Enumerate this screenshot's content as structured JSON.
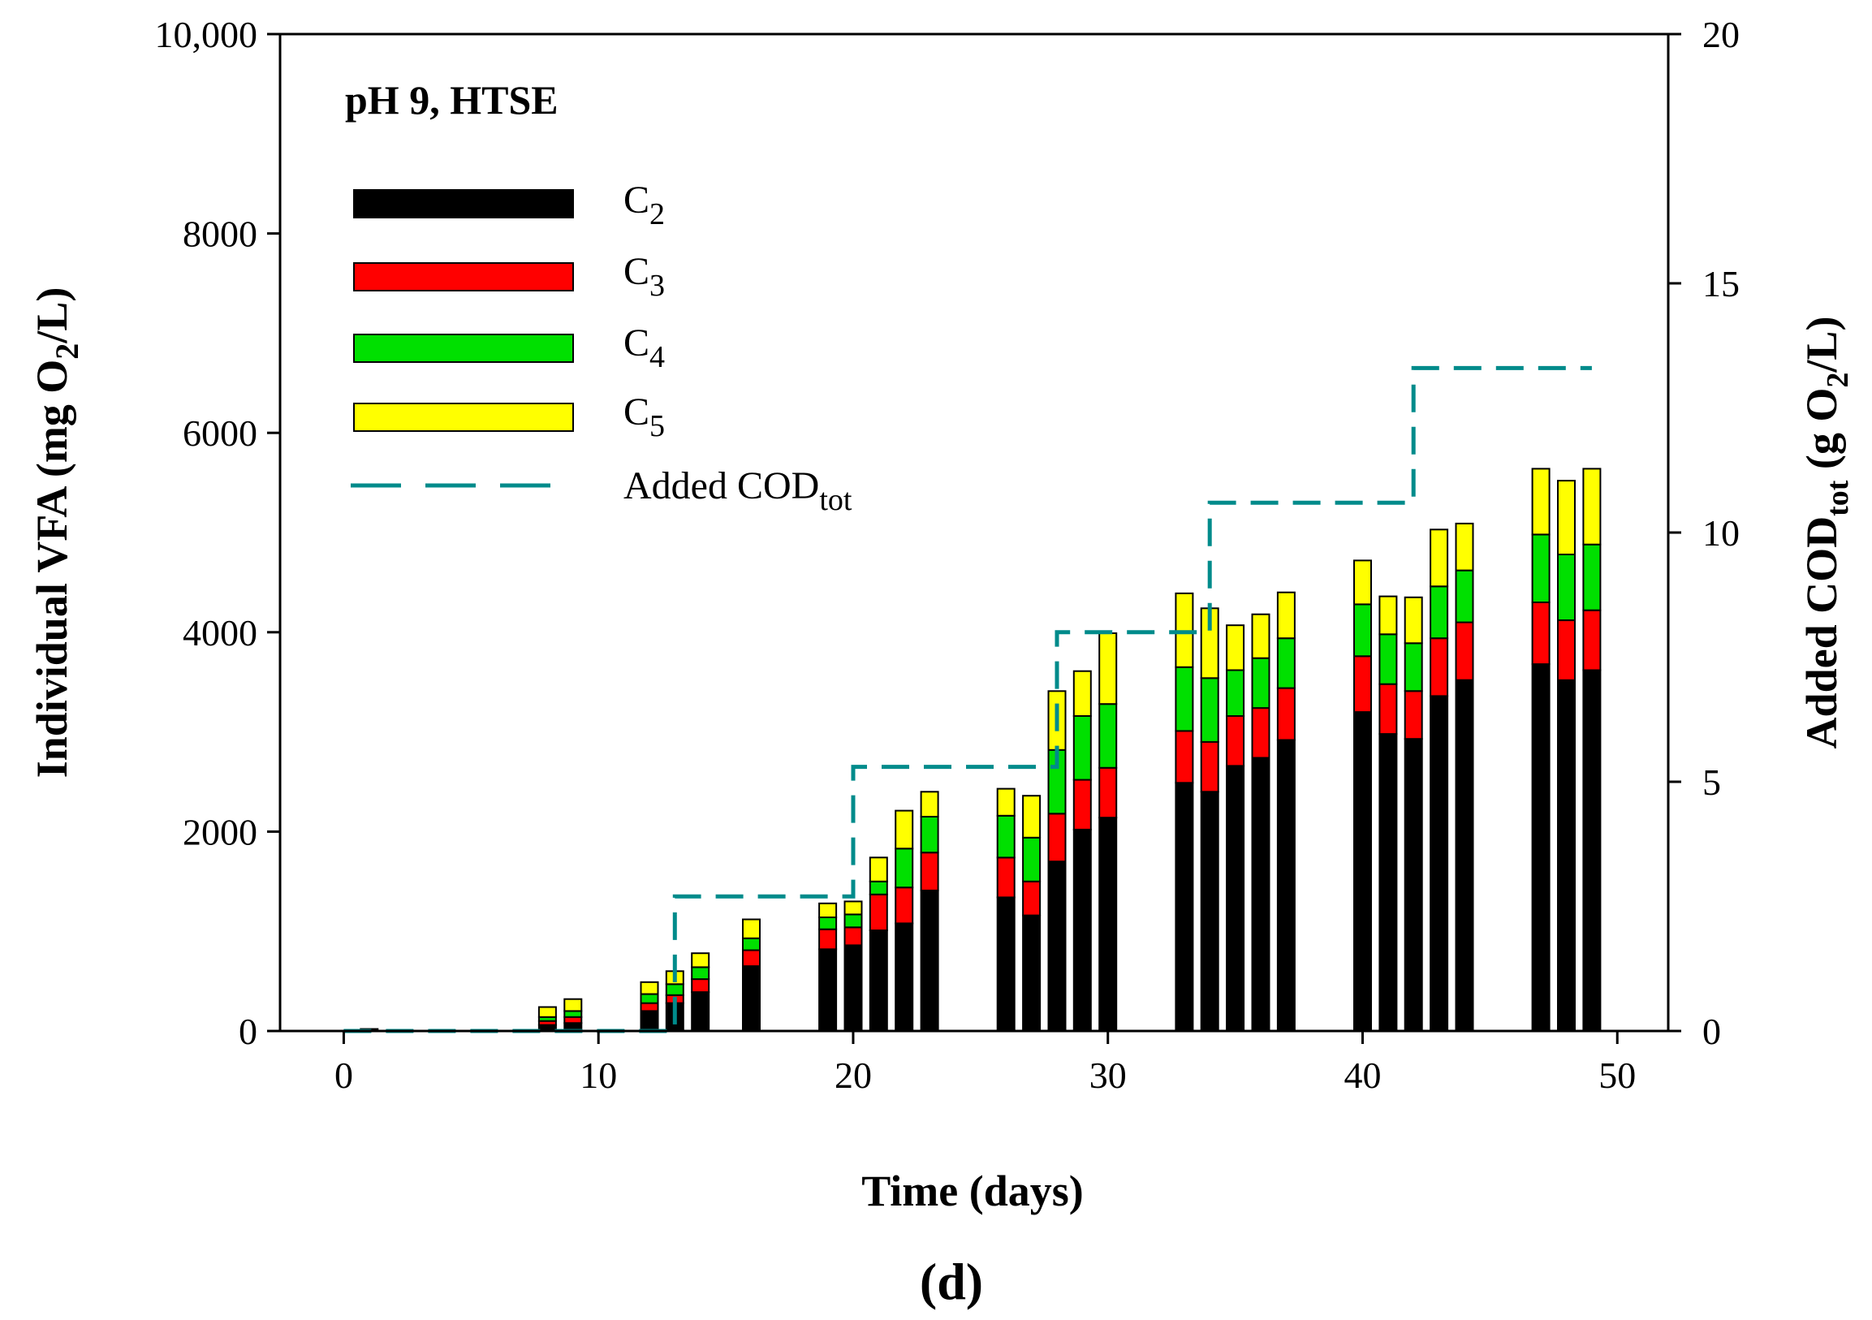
{
  "chart_data": {
    "type": "bar",
    "stacked": true,
    "title": "pH 9, HTSE",
    "panel_label": "(d)",
    "xlabel": "Time (days)",
    "ylabel": {
      "main": "Individual VFA (mg O",
      "sub": "2",
      "tail": "/L)"
    },
    "y2label": {
      "main": "Added COD",
      "sub": "tot",
      "tail": " (g O",
      "sub2": "2",
      "tail2": "/L)"
    },
    "xlim": [
      -2.5,
      52
    ],
    "ylim": [
      0,
      10000
    ],
    "y2lim": [
      0,
      20
    ],
    "x_ticks": [
      0,
      10,
      20,
      30,
      40,
      50
    ],
    "x_tick_labels": [
      "0",
      "10",
      "20",
      "30",
      "40",
      "50"
    ],
    "y_ticks": [
      0,
      2000,
      4000,
      6000,
      8000,
      10000
    ],
    "y_tick_labels": [
      "0",
      "2000",
      "4000",
      "6000",
      "8000",
      "10,000"
    ],
    "y2_ticks": [
      0,
      5,
      10,
      15,
      20
    ],
    "y2_tick_labels": [
      "0",
      "5",
      "10",
      "15",
      "20"
    ],
    "legend": {
      "position": "top-left",
      "entries": [
        {
          "main": "C",
          "sub": "2"
        },
        {
          "main": "C",
          "sub": "3"
        },
        {
          "main": "C",
          "sub": "4"
        },
        {
          "main": "C",
          "sub": "5"
        },
        {
          "main": "Added COD",
          "sub": "tot"
        }
      ]
    },
    "x": [
      1,
      8,
      9,
      12,
      13,
      14,
      16,
      19,
      20,
      21,
      22,
      23,
      26,
      27,
      28,
      29,
      30,
      33,
      34,
      35,
      36,
      37,
      40,
      41,
      42,
      43,
      44,
      47,
      48,
      49
    ],
    "series": [
      {
        "color": "#000000",
        "values": [
          20,
          60,
          80,
          200,
          280,
          390,
          650,
          820,
          860,
          1010,
          1080,
          1410,
          1340,
          1160,
          1700,
          2020,
          2140,
          2490,
          2400,
          2660,
          2740,
          2920,
          3200,
          2980,
          2930,
          3360,
          3520,
          3680,
          3520,
          3620
        ]
      },
      {
        "color": "#ff0000",
        "values": [
          0,
          40,
          60,
          80,
          80,
          130,
          160,
          200,
          180,
          360,
          360,
          380,
          400,
          340,
          480,
          500,
          500,
          520,
          500,
          500,
          500,
          520,
          560,
          500,
          480,
          580,
          580,
          620,
          600,
          600
        ]
      },
      {
        "color": "#00e000",
        "values": [
          0,
          40,
          60,
          90,
          110,
          120,
          120,
          120,
          130,
          130,
          390,
          360,
          420,
          440,
          640,
          640,
          640,
          640,
          640,
          460,
          500,
          500,
          520,
          500,
          480,
          520,
          520,
          680,
          660,
          660
        ]
      },
      {
        "color": "#ffff00",
        "values": [
          0,
          100,
          120,
          120,
          130,
          140,
          190,
          140,
          130,
          240,
          380,
          250,
          270,
          420,
          590,
          450,
          710,
          740,
          700,
          450,
          440,
          460,
          440,
          380,
          460,
          570,
          470,
          660,
          740,
          760
        ]
      }
    ],
    "line_series": {
      "color": "#008b8b",
      "style": "dashed",
      "axis": "right",
      "x": [
        0,
        13,
        13,
        20,
        20,
        28,
        28,
        34,
        34,
        42,
        42,
        49
      ],
      "y": [
        0,
        0,
        2.7,
        2.7,
        5.3,
        5.3,
        8.0,
        8.0,
        10.6,
        10.6,
        13.3,
        13.3
      ]
    }
  }
}
